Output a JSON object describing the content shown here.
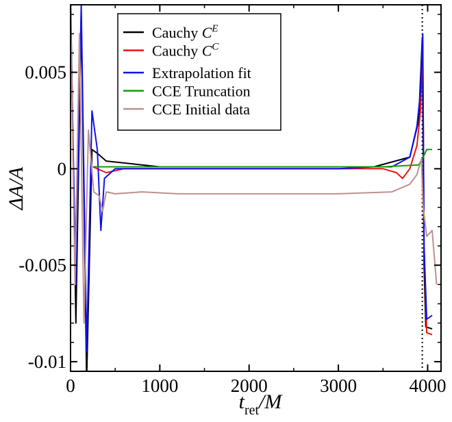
{
  "chart_data": {
    "type": "line",
    "title": "",
    "xlabel_main": "t",
    "xlabel_sub": "ret",
    "xlabel_suffix": "/M",
    "ylabel": "ΔA/A",
    "xlim": [
      0,
      4150
    ],
    "ylim": [
      -0.0105,
      0.0085
    ],
    "x_ticks": [
      0,
      1000,
      2000,
      3000,
      4000
    ],
    "x_tick_labels": [
      "0",
      "1000",
      "2000",
      "3000",
      "4000"
    ],
    "y_ticks": [
      -0.01,
      -0.005,
      0,
      0.005
    ],
    "y_tick_labels": [
      "-0.01",
      "-0.005",
      "0",
      "0.005"
    ],
    "vertical_reference_x": 3940,
    "legend_position": "top-left",
    "series": [
      {
        "name": "Cauchy C^E",
        "name_main": "Cauchy C",
        "name_sup": "E",
        "color": "#000000",
        "points": [
          [
            0,
            0.009
          ],
          [
            60,
            -0.008
          ],
          [
            120,
            0.008
          ],
          [
            180,
            -0.011
          ],
          [
            240,
            0.001
          ],
          [
            300,
            0.0008
          ],
          [
            400,
            0.0004
          ],
          [
            600,
            0.0003
          ],
          [
            800,
            0.0002
          ],
          [
            1000,
            0.0001
          ],
          [
            1200,
            0.0001
          ],
          [
            2000,
            0.0001
          ],
          [
            3000,
            0.0001
          ],
          [
            3400,
            0.0001
          ],
          [
            3800,
            0.0006
          ],
          [
            3900,
            0.0025
          ],
          [
            3940,
            0.0068
          ],
          [
            3960,
            -0.005
          ],
          [
            3980,
            -0.0082
          ],
          [
            4050,
            -0.0083
          ]
        ]
      },
      {
        "name": "Cauchy C^C",
        "name_main": "Cauchy C",
        "name_sup": "C",
        "color": "#e8140e",
        "points": [
          [
            250,
            0.0001
          ],
          [
            400,
            -0.0002
          ],
          [
            600,
            0.0
          ],
          [
            1000,
            0.0
          ],
          [
            2000,
            0.0
          ],
          [
            3000,
            0.0
          ],
          [
            3500,
            0.0
          ],
          [
            3650,
            -0.0002
          ],
          [
            3720,
            -0.0005
          ],
          [
            3800,
            0.0
          ],
          [
            3880,
            0.0012
          ],
          [
            3920,
            0.003
          ],
          [
            3945,
            0.0066
          ],
          [
            3960,
            -0.004
          ],
          [
            3990,
            -0.0085
          ],
          [
            4050,
            -0.0086
          ]
        ]
      },
      {
        "name": "Extrapolation fit",
        "name_main": "Extrapolation fit",
        "name_sup": "",
        "color": "#1010f0",
        "points": [
          [
            0,
            0.008
          ],
          [
            60,
            -0.006
          ],
          [
            120,
            0.0085
          ],
          [
            180,
            -0.0095
          ],
          [
            240,
            0.003
          ],
          [
            300,
            0.001
          ],
          [
            340,
            -0.0032
          ],
          [
            380,
            -0.0005
          ],
          [
            500,
            0.0
          ],
          [
            800,
            0.0
          ],
          [
            1000,
            0.0
          ],
          [
            2000,
            0.0
          ],
          [
            3000,
            0.0
          ],
          [
            3400,
            0.0001
          ],
          [
            3600,
            0.0001
          ],
          [
            3800,
            0.0006
          ],
          [
            3880,
            0.0022
          ],
          [
            3920,
            0.004
          ],
          [
            3945,
            0.007
          ],
          [
            3960,
            -0.004
          ],
          [
            3990,
            -0.0078
          ],
          [
            4050,
            -0.0076
          ]
        ]
      },
      {
        "name": "CCE Truncation",
        "name_main": "CCE Truncation",
        "name_sup": "",
        "color": "#119911",
        "points": [
          [
            250,
            0.0001
          ],
          [
            1000,
            0.0001
          ],
          [
            2000,
            0.0001
          ],
          [
            3000,
            0.0001
          ],
          [
            3500,
            0.0001
          ],
          [
            3900,
            0.0002
          ],
          [
            3950,
            0.0006
          ],
          [
            3990,
            0.001
          ],
          [
            4050,
            0.001
          ]
        ]
      },
      {
        "name": "CCE Initial data",
        "name_main": "CCE Initial data",
        "name_sup": "",
        "color": "#bc918d",
        "points": [
          [
            0,
            0.0085
          ],
          [
            50,
            -0.006
          ],
          [
            100,
            0.007
          ],
          [
            150,
            -0.008
          ],
          [
            200,
            0.002
          ],
          [
            260,
            -0.0012
          ],
          [
            320,
            -0.0014
          ],
          [
            360,
            -0.0022
          ],
          [
            400,
            -0.0012
          ],
          [
            500,
            -0.0013
          ],
          [
            800,
            -0.0012
          ],
          [
            1200,
            -0.0013
          ],
          [
            2000,
            -0.0013
          ],
          [
            3000,
            -0.0013
          ],
          [
            3600,
            -0.0012
          ],
          [
            3800,
            -0.0008
          ],
          [
            3880,
            -0.0003
          ],
          [
            3930,
            0.0005
          ],
          [
            3950,
            -0.002
          ],
          [
            3990,
            -0.0035
          ],
          [
            4050,
            -0.0032
          ],
          [
            4100,
            -0.006
          ]
        ]
      }
    ]
  }
}
